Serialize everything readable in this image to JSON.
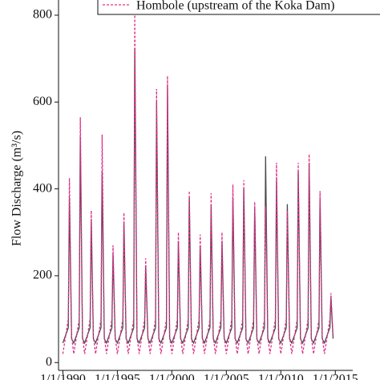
{
  "chart_data": {
    "type": "line",
    "y_label": "Flow Discharge (m³/s)",
    "x": [
      1990,
      1990.5,
      1990.6,
      1990.8,
      1991,
      1991.5,
      1991.6,
      1991.8,
      1992,
      1992.5,
      1992.6,
      1992.8,
      1993,
      1993.5,
      1993.6,
      1993.8,
      1994,
      1994.5,
      1994.6,
      1994.8,
      1995,
      1995.5,
      1995.6,
      1995.8,
      1996,
      1996.5,
      1996.6,
      1996.8,
      1997,
      1997.5,
      1997.6,
      1997.8,
      1998,
      1998.5,
      1998.6,
      1998.8,
      1999,
      1999.5,
      1999.6,
      1999.8,
      2000,
      2000.5,
      2000.6,
      2000.8,
      2001,
      2001.5,
      2001.6,
      2001.8,
      2002,
      2002.5,
      2002.6,
      2002.8,
      2003,
      2003.5,
      2003.6,
      2003.8,
      2004,
      2004.5,
      2004.6,
      2004.8,
      2005,
      2005.5,
      2005.6,
      2005.8,
      2006,
      2006.5,
      2006.6,
      2006.8,
      2007,
      2007.5,
      2007.6,
      2007.8,
      2008,
      2008.5,
      2008.6,
      2008.8,
      2009,
      2009.5,
      2009.6,
      2009.8,
      2010,
      2010.5,
      2010.6,
      2010.8,
      2011,
      2011.5,
      2011.6,
      2011.8,
      2012,
      2012.5,
      2012.6,
      2012.8,
      2013,
      2013.5,
      2013.6,
      2013.8,
      2014,
      2014.5,
      2014.6,
      2014.8
    ],
    "series": [
      {
        "color": "#4a4a4a",
        "dashed": false,
        "values": [
          45,
          80,
          380,
          55,
          45,
          80,
          520,
          55,
          45,
          80,
          330,
          55,
          45,
          80,
          440,
          55,
          45,
          80,
          250,
          55,
          45,
          80,
          320,
          55,
          45,
          80,
          720,
          55,
          45,
          80,
          220,
          55,
          45,
          80,
          600,
          55,
          45,
          80,
          640,
          55,
          45,
          80,
          280,
          55,
          45,
          80,
          380,
          55,
          45,
          80,
          270,
          55,
          45,
          80,
          360,
          55,
          45,
          80,
          280,
          55,
          45,
          80,
          380,
          55,
          45,
          80,
          400,
          55,
          45,
          80,
          360,
          55,
          45,
          80,
          475,
          55,
          45,
          80,
          420,
          55,
          45,
          80,
          365,
          55,
          45,
          80,
          440,
          55,
          45,
          80,
          460,
          55,
          45,
          80,
          380,
          55,
          45,
          80,
          150,
          55
        ]
      },
      {
        "name": "Hombole (upstream of the Koka Dam)",
        "color": "#e0308a",
        "dashed": true,
        "values": [
          20,
          100,
          425,
          60,
          20,
          100,
          565,
          60,
          20,
          100,
          350,
          60,
          20,
          100,
          525,
          60,
          20,
          100,
          270,
          60,
          20,
          100,
          345,
          60,
          20,
          100,
          810,
          60,
          20,
          100,
          240,
          60,
          20,
          100,
          630,
          60,
          20,
          100,
          660,
          60,
          20,
          100,
          300,
          60,
          20,
          100,
          395,
          60,
          20,
          100,
          295,
          60,
          20,
          100,
          390,
          60,
          20,
          100,
          300,
          60,
          20,
          100,
          410,
          60,
          20,
          100,
          420,
          60,
          20,
          100,
          370,
          60,
          20,
          100,
          360,
          60,
          20,
          100,
          460,
          60,
          20,
          100,
          350,
          60,
          20,
          100,
          460,
          60,
          20,
          100,
          480,
          60,
          20,
          100,
          395,
          60,
          20,
          100,
          160,
          60
        ]
      }
    ],
    "xlim": [
      1989.6,
      2016.6
    ],
    "ylim": [
      -18,
      835
    ],
    "xticks": [
      {
        "value": 1990,
        "label": "1/1/1990"
      },
      {
        "value": 1995,
        "label": "1/1/1995"
      },
      {
        "value": 2000,
        "label": "1/1/2000"
      },
      {
        "value": 2005,
        "label": "1/1/2005"
      },
      {
        "value": 2010,
        "label": "1/1/2010"
      },
      {
        "value": 2015,
        "label": "1/1/2015"
      }
    ],
    "yticks": [
      0,
      200,
      400,
      600,
      800
    ]
  }
}
